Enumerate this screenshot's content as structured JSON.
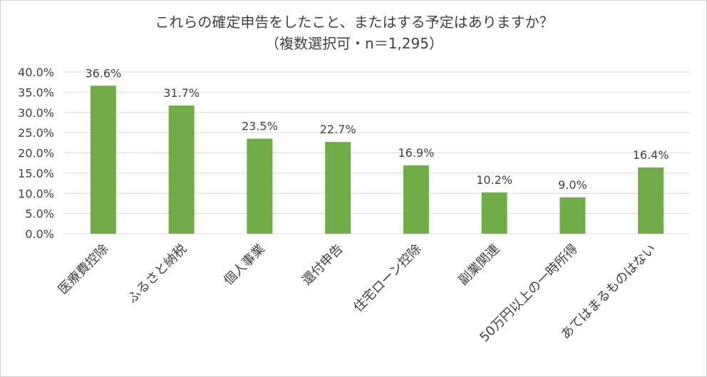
{
  "chart_data": {
    "type": "bar",
    "title": "これらの確定申告をしたこと、またはする予定はありますか？",
    "subtitle": "（複数選択可・n＝1,295）",
    "categories": [
      "医療費控除",
      "ふるさと納税",
      "個人事業",
      "還付申告",
      "住宅ローン控除",
      "副業関連",
      "50万円以上の一時所得",
      "あてはまるものはない"
    ],
    "values": [
      36.6,
      31.7,
      23.5,
      22.7,
      16.9,
      10.2,
      9.0,
      16.4
    ],
    "data_labels": [
      "36.6%",
      "31.7%",
      "23.5%",
      "22.7%",
      "16.9%",
      "10.2%",
      "9.0%",
      "16.4%"
    ],
    "y_ticks": [
      "0.0%",
      "5.0%",
      "10.0%",
      "15.0%",
      "20.0%",
      "25.0%",
      "30.0%",
      "35.0%",
      "40.0%"
    ],
    "ylim": [
      0,
      40
    ],
    "xlabel": "",
    "ylabel": "",
    "grid": true,
    "legend": "none",
    "bar_color": "#70ad47",
    "grid_color": "#d9d9d9"
  }
}
